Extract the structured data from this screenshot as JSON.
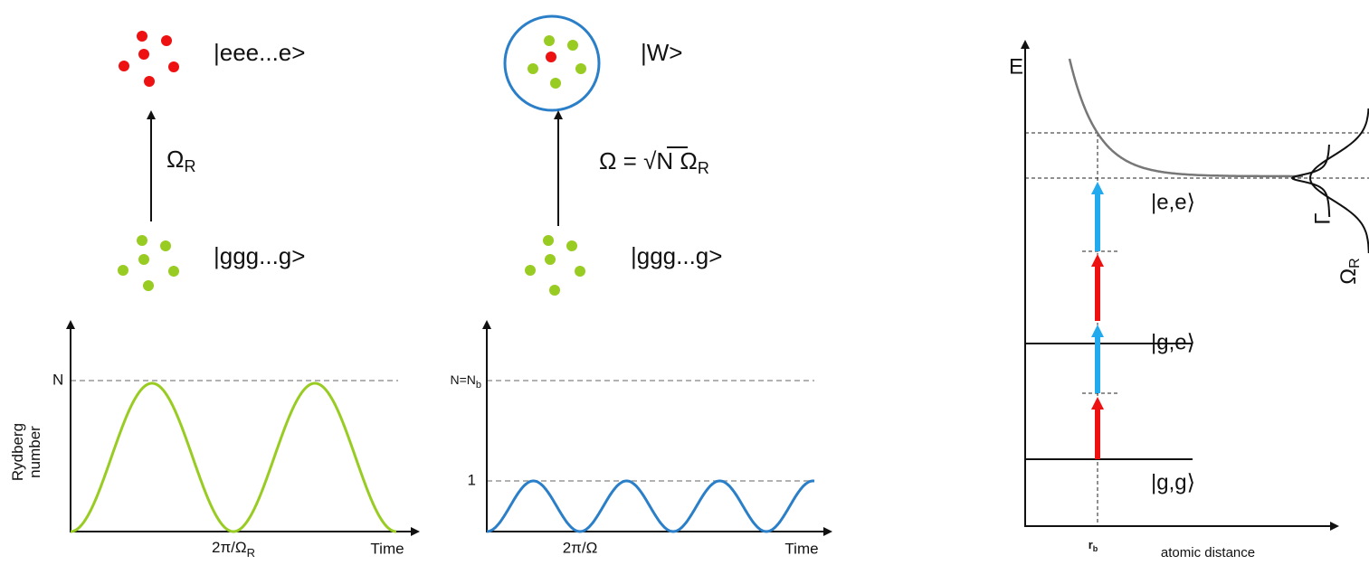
{
  "top_left": {
    "state_top": "|eee...e>",
    "rabi": {
      "symbol": "Ω",
      "sub": "R"
    },
    "state_bottom": "|ggg...g>"
  },
  "top_middle": {
    "state_top": "|W>",
    "rabi": {
      "pre": "Ω = ",
      "root": "√",
      "radicand": "N",
      "symbol": " Ω",
      "sub": "R"
    },
    "state_bottom": "|ggg...g>"
  },
  "plot_left": {
    "y_label": "N",
    "y_title": [
      "Rydberg",
      "number"
    ],
    "x_label": {
      "text": "2π/Ω",
      "sub": "R"
    },
    "x_title": "Time"
  },
  "plot_middle": {
    "y_label_top": {
      "text": "N=N",
      "sub": "b"
    },
    "y_label_one": "1",
    "x_label": "2π/Ω",
    "x_title": "Time"
  },
  "energy_diagram": {
    "y_title": "E",
    "levels": [
      "|e,e⟩",
      "|g,e⟩",
      "|g,g⟩"
    ],
    "linewidth": "Γ",
    "rabi": {
      "symbol": "Ω",
      "sub": "R"
    },
    "x_label": {
      "text": "r",
      "sub": "b"
    },
    "x_title": "atomic distance"
  }
}
